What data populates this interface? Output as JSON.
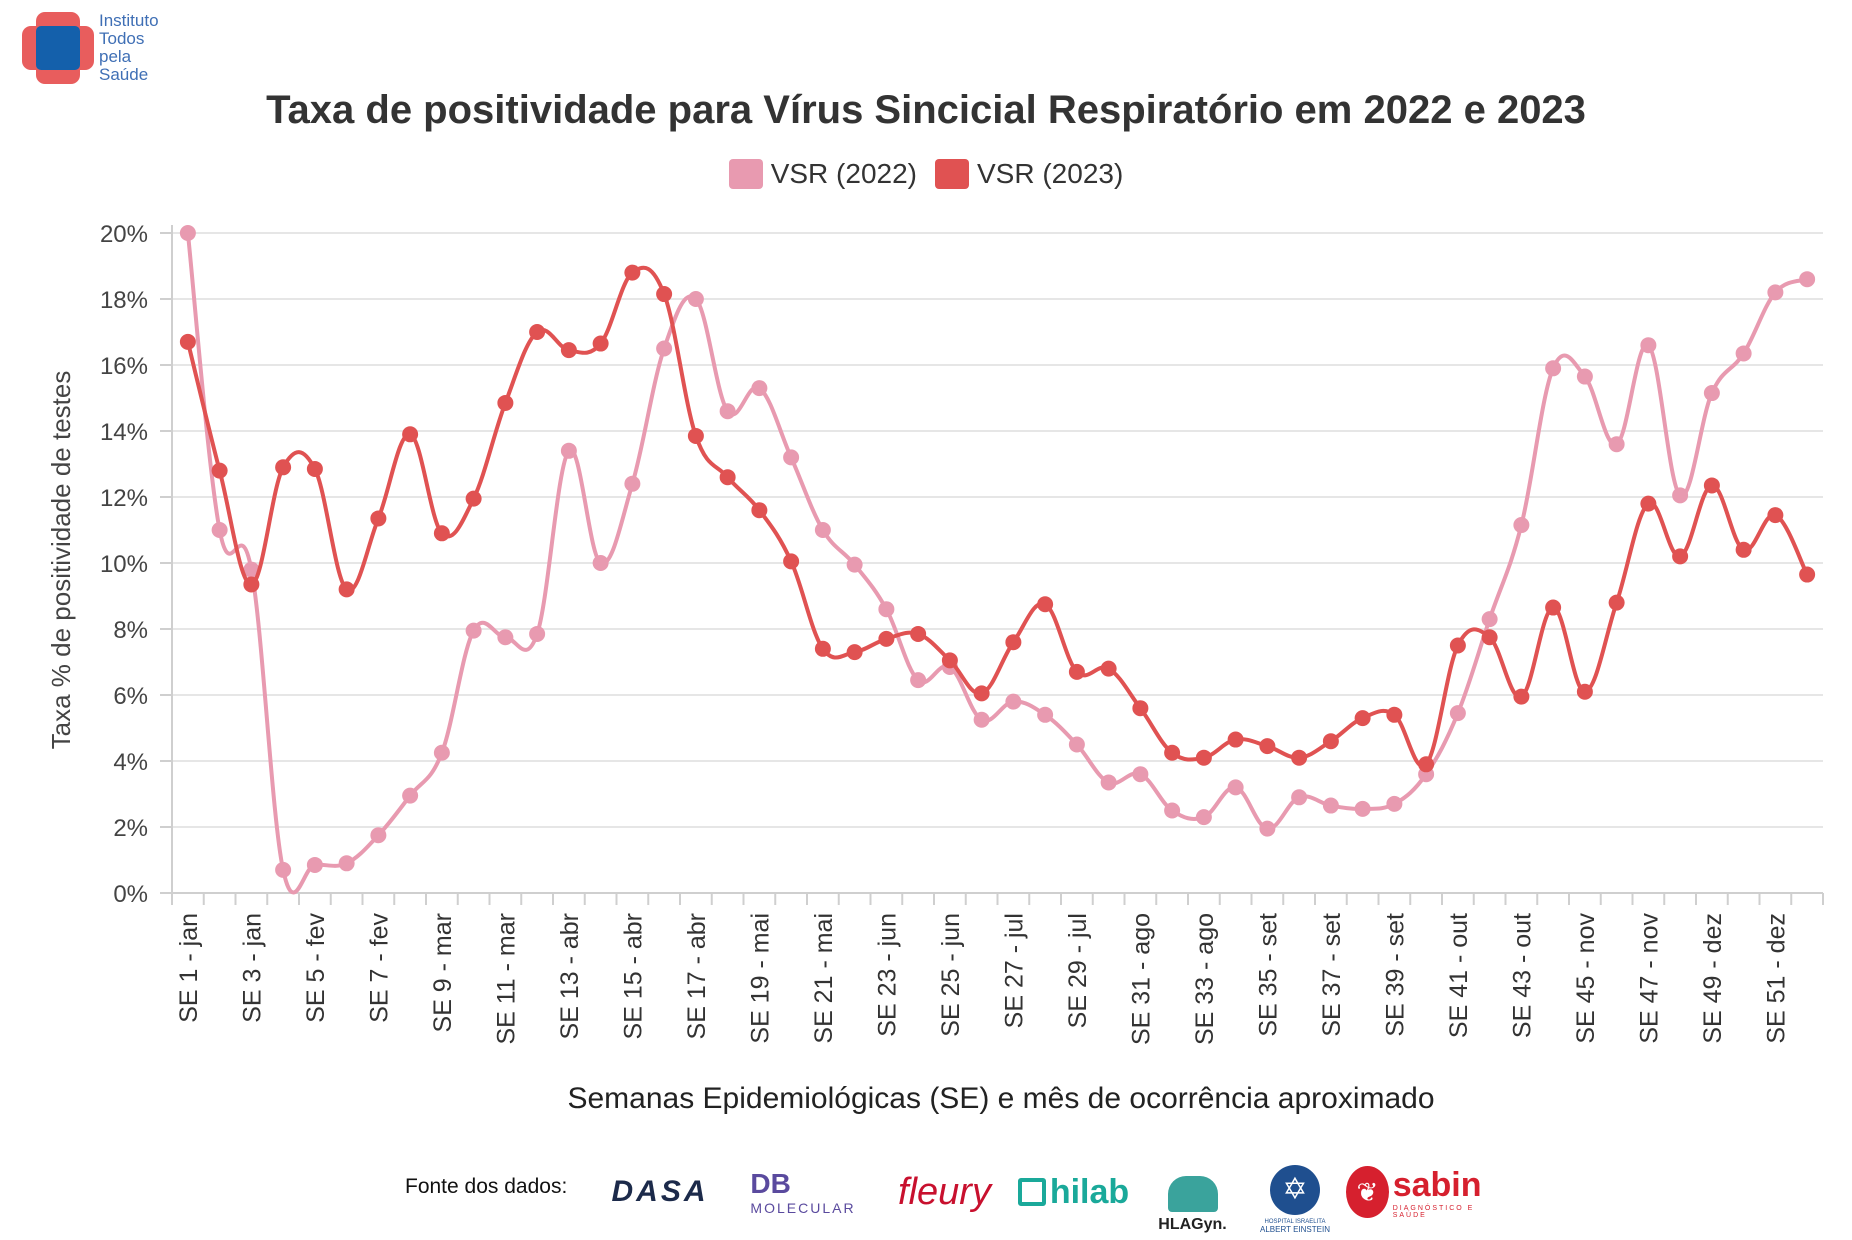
{
  "brand": {
    "name_lines": [
      "Instituto",
      "Todos",
      "pela",
      "Saúde"
    ],
    "colors": {
      "cross": "#e85d5d",
      "center": "#1460ab",
      "text": "#3f6fb5"
    }
  },
  "sources": {
    "label": "Fonte dos dados:",
    "logos": [
      {
        "name": "dasa-icon",
        "text": "DASA",
        "color": "#1c2a4a"
      },
      {
        "name": "db-molecular-icon",
        "text": "DB",
        "sub": "MOLECULAR",
        "color": "#5a4a9e"
      },
      {
        "name": "fleury-icon",
        "text": "fleury",
        "color": "#c8102e"
      },
      {
        "name": "hilab-icon",
        "text": "hilab",
        "color": "#1aa99a"
      },
      {
        "name": "hlagyn-icon",
        "text": "HLAGyn.",
        "color": "#222222"
      },
      {
        "name": "albert-einstein-icon",
        "text": "ALBERT EINSTEIN",
        "sub": "HOSPITAL ISRAELITA",
        "color": "#1f4f8f"
      },
      {
        "name": "sabin-icon",
        "text": "sabin",
        "sub": "DIAGNÓSTICO E SAÚDE",
        "color": "#d6202e"
      }
    ]
  },
  "chart_data": {
    "type": "line",
    "title": "Taxa de positividade para Vírus Sincicial Respiratório em 2022 e 2023",
    "xlabel": "Semanas Epidemiológicas (SE) e mês de ocorrência aproximado",
    "ylabel": "Taxa % de positividade de testes",
    "ylim": [
      0,
      20
    ],
    "yticks": [
      0,
      2,
      4,
      6,
      8,
      10,
      12,
      14,
      16,
      18,
      20
    ],
    "ytick_labels": [
      "0%",
      "2%",
      "4%",
      "6%",
      "8%",
      "10%",
      "12%",
      "14%",
      "16%",
      "18%",
      "20%"
    ],
    "x": [
      1,
      2,
      3,
      4,
      5,
      6,
      7,
      8,
      9,
      10,
      11,
      12,
      13,
      14,
      15,
      16,
      17,
      18,
      19,
      20,
      21,
      22,
      23,
      24,
      25,
      26,
      27,
      28,
      29,
      30,
      31,
      32,
      33,
      34,
      35,
      36,
      37,
      38,
      39,
      40,
      41,
      42,
      43,
      44,
      45,
      46,
      47,
      48,
      49,
      50,
      51,
      52
    ],
    "xtick_labels": [
      {
        "week": 1,
        "label": "SE 1 - jan"
      },
      {
        "week": 3,
        "label": "SE 3 - jan"
      },
      {
        "week": 5,
        "label": "SE 5 - fev"
      },
      {
        "week": 7,
        "label": "SE 7 - fev"
      },
      {
        "week": 9,
        "label": "SE 9 - mar"
      },
      {
        "week": 11,
        "label": "SE 11 - mar"
      },
      {
        "week": 13,
        "label": "SE 13 - abr"
      },
      {
        "week": 15,
        "label": "SE 15 - abr"
      },
      {
        "week": 17,
        "label": "SE 17 - abr"
      },
      {
        "week": 19,
        "label": "SE 19 - mai"
      },
      {
        "week": 21,
        "label": "SE 21 - mai"
      },
      {
        "week": 23,
        "label": "SE 23 - jun"
      },
      {
        "week": 25,
        "label": "SE 25 - jun"
      },
      {
        "week": 27,
        "label": "SE 27 - jul"
      },
      {
        "week": 29,
        "label": "SE 29 - jul"
      },
      {
        "week": 31,
        "label": "SE 31 - ago"
      },
      {
        "week": 33,
        "label": "SE 33 - ago"
      },
      {
        "week": 35,
        "label": "SE 35 - set"
      },
      {
        "week": 37,
        "label": "SE 37 - set"
      },
      {
        "week": 39,
        "label": "SE 39 - set"
      },
      {
        "week": 41,
        "label": "SE 41 - out"
      },
      {
        "week": 43,
        "label": "SE 43 - out"
      },
      {
        "week": 45,
        "label": "SE 45 - nov"
      },
      {
        "week": 47,
        "label": "SE 47 - nov"
      },
      {
        "week": 49,
        "label": "SE 49 - dez"
      },
      {
        "week": 51,
        "label": "SE 51 - dez"
      }
    ],
    "grid": true,
    "legend_position": "top-center",
    "series": [
      {
        "name": "VSR (2022)",
        "color": "#e89ab0",
        "values": [
          20.0,
          11.0,
          9.8,
          0.7,
          0.85,
          0.9,
          1.75,
          2.95,
          4.25,
          7.95,
          7.75,
          7.85,
          13.4,
          10.0,
          12.4,
          16.5,
          18.0,
          14.6,
          15.3,
          13.2,
          11.0,
          9.95,
          8.6,
          6.45,
          6.85,
          5.25,
          5.8,
          5.4,
          4.5,
          3.35,
          3.6,
          2.5,
          2.3,
          3.2,
          1.95,
          2.9,
          2.65,
          2.55,
          2.7,
          3.6,
          5.45,
          8.3,
          11.15,
          15.9,
          15.65,
          13.6,
          16.6,
          12.05,
          15.15,
          16.35,
          18.2,
          18.6
        ]
      },
      {
        "name": "VSR (2023)",
        "color": "#e05252",
        "values": [
          16.7,
          12.8,
          9.35,
          12.9,
          12.85,
          9.2,
          11.35,
          13.9,
          10.9,
          11.95,
          14.85,
          17.0,
          16.45,
          16.65,
          18.8,
          18.15,
          13.85,
          12.6,
          11.6,
          10.05,
          7.4,
          7.3,
          7.7,
          7.85,
          7.05,
          6.05,
          7.6,
          8.75,
          6.7,
          6.8,
          5.6,
          4.25,
          4.1,
          4.65,
          4.45,
          4.1,
          4.6,
          5.3,
          5.4,
          3.9,
          7.5,
          7.75,
          5.95,
          8.65,
          6.1,
          8.8,
          11.8,
          10.2,
          12.35,
          10.4,
          11.45,
          9.65
        ]
      }
    ]
  }
}
